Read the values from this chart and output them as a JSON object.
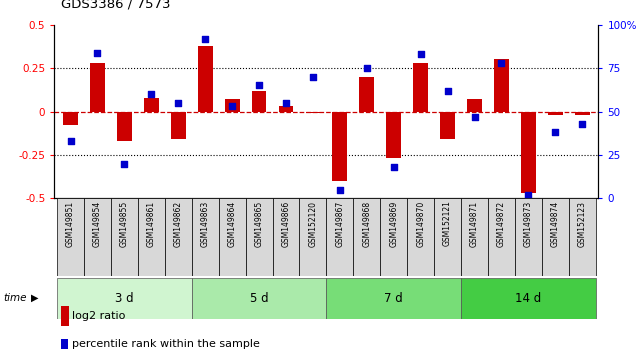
{
  "title": "GDS3386 / 7573",
  "samples": [
    "GSM149851",
    "GSM149854",
    "GSM149855",
    "GSM149861",
    "GSM149862",
    "GSM149863",
    "GSM149864",
    "GSM149865",
    "GSM149866",
    "GSM152120",
    "GSM149867",
    "GSM149868",
    "GSM149869",
    "GSM149870",
    "GSM152121",
    "GSM149871",
    "GSM149872",
    "GSM149873",
    "GSM149874",
    "GSM152123"
  ],
  "log2_ratio": [
    -0.08,
    0.28,
    -0.17,
    0.08,
    -0.16,
    0.38,
    0.07,
    0.12,
    0.03,
    -0.01,
    -0.4,
    0.2,
    -0.27,
    0.28,
    -0.16,
    0.07,
    0.3,
    -0.47,
    -0.02,
    -0.02
  ],
  "pct_rank": [
    33,
    84,
    20,
    60,
    55,
    92,
    53,
    65,
    55,
    70,
    5,
    75,
    18,
    83,
    62,
    47,
    78,
    2,
    38,
    43
  ],
  "groups": [
    {
      "label": "3 d",
      "start": 0,
      "end": 5,
      "color": "#d0f5d0"
    },
    {
      "label": "5 d",
      "start": 5,
      "end": 10,
      "color": "#aaeaaa"
    },
    {
      "label": "7 d",
      "start": 10,
      "end": 15,
      "color": "#77dd77"
    },
    {
      "label": "14 d",
      "start": 15,
      "end": 20,
      "color": "#44cc44"
    }
  ],
  "ylim_left": [
    -0.5,
    0.5
  ],
  "ylim_right": [
    0,
    100
  ],
  "left_ticks": [
    -0.5,
    -0.25,
    0.0,
    0.25,
    0.5
  ],
  "right_ticks": [
    0,
    25,
    50,
    75,
    100
  ],
  "bar_color": "#cc0000",
  "dot_color": "#0000cc",
  "zero_line_color": "#cc0000",
  "background_color": "#ffffff",
  "bar_width": 0.55,
  "legend_labels": [
    "log2 ratio",
    "percentile rank within the sample"
  ],
  "sample_box_color": "#d8d8d8"
}
